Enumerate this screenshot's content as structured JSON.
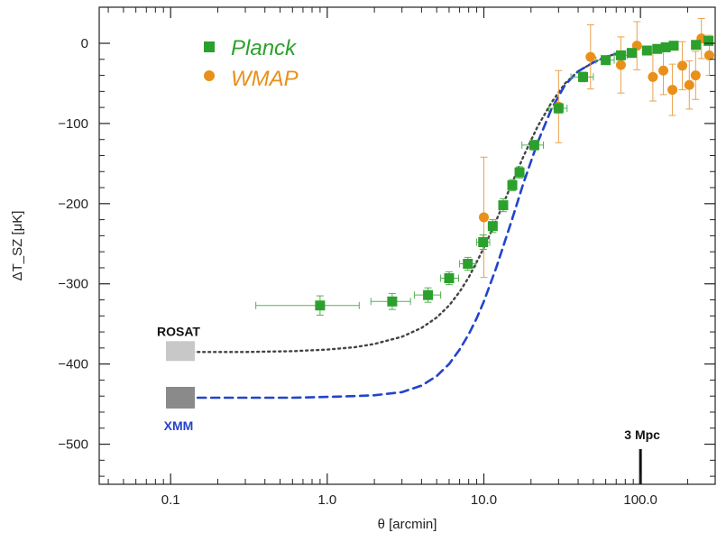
{
  "chart_data": {
    "type": "scatter",
    "xlabel": "θ [arcmin]",
    "ylabel": "ΔT_SZ [μK]",
    "xscale": "log",
    "xlim": [
      0.035,
      300
    ],
    "ylim": [
      -550,
      45
    ],
    "grid": false,
    "legend_position": "top-left",
    "x_ticks": [
      {
        "value": 0.1,
        "label": "0.1"
      },
      {
        "value": 1.0,
        "label": "1.0"
      },
      {
        "value": 10.0,
        "label": "10.0"
      },
      {
        "value": 100.0,
        "label": "100.0"
      }
    ],
    "y_ticks": [
      0,
      -100,
      -200,
      -300,
      -400,
      -500
    ],
    "series": [
      {
        "name": "Planck",
        "kind": "points",
        "marker": "square",
        "color": "#2ca02c",
        "points": [
          {
            "x": 0.9,
            "y": -327,
            "xerr": [
              0.35,
              1.6
            ],
            "yerr": 12
          },
          {
            "x": 2.6,
            "y": -322,
            "xerr": [
              1.9,
              3.4
            ],
            "yerr": 10
          },
          {
            "x": 4.4,
            "y": -314,
            "xerr": [
              3.6,
              5.3
            ],
            "yerr": 9
          },
          {
            "x": 6.0,
            "y": -293,
            "xerr": [
              5.3,
              6.9
            ],
            "yerr": 8
          },
          {
            "x": 7.9,
            "y": -275,
            "xerr": [
              7.0,
              8.9
            ],
            "yerr": 8
          },
          {
            "x": 9.9,
            "y": -248,
            "xerr": [
              9.0,
              10.9
            ],
            "yerr": 9
          },
          {
            "x": 11.4,
            "y": -228,
            "xerr": [
              10.8,
              12.1
            ],
            "yerr": 8
          },
          {
            "x": 13.3,
            "y": -202,
            "xerr": [
              12.5,
              14.2
            ],
            "yerr": 8
          },
          {
            "x": 15.2,
            "y": -177,
            "xerr": [
              14.3,
              16.1
            ],
            "yerr": 7
          },
          {
            "x": 16.9,
            "y": -161,
            "xerr": [
              16.0,
              17.8
            ],
            "yerr": 7
          },
          {
            "x": 21.0,
            "y": -127,
            "xerr": [
              17.5,
              24.0
            ],
            "yerr": 6
          },
          {
            "x": 30.0,
            "y": -81,
            "xerr": [
              26.0,
              34.0
            ],
            "yerr": 6
          },
          {
            "x": 43.0,
            "y": -42,
            "xerr": [
              36.0,
              50.0
            ],
            "yerr": 6
          },
          {
            "x": 60.0,
            "y": -21,
            "xerr": [
              52.0,
              68.0
            ],
            "yerr": 5
          },
          {
            "x": 75.0,
            "y": -15,
            "xerr": [
              68.0,
              82.0
            ],
            "yerr": 5
          },
          {
            "x": 88.0,
            "y": -12,
            "xerr": [
              82.0,
              94.0
            ],
            "yerr": 5
          },
          {
            "x": 110.0,
            "y": -9,
            "xerr": [
              103.0,
              117.0
            ],
            "yerr": 5
          },
          {
            "x": 128.0,
            "y": -7,
            "xerr": [
              120.0,
              136.0
            ],
            "yerr": 5
          },
          {
            "x": 145.0,
            "y": -5,
            "xerr": [
              137.0,
              153.0
            ],
            "yerr": 5
          },
          {
            "x": 163.0,
            "y": -3,
            "xerr": [
              155.0,
              171.0
            ],
            "yerr": 5
          },
          {
            "x": 226.0,
            "y": -2,
            "xerr": [
              215.0,
              238.0
            ],
            "yerr": 5
          },
          {
            "x": 272.0,
            "y": 3,
            "xerr": [
              262.0,
              282.0
            ],
            "yerr": 5
          }
        ]
      },
      {
        "name": "WMAP",
        "kind": "points",
        "marker": "circle",
        "color": "#e8901a",
        "points": [
          {
            "x": 10.0,
            "y": -217,
            "yerr": 75
          },
          {
            "x": 30.0,
            "y": -79,
            "yerr": 45
          },
          {
            "x": 48.0,
            "y": -17,
            "yerr": 40
          },
          {
            "x": 75.0,
            "y": -27,
            "yerr": 35
          },
          {
            "x": 95.0,
            "y": -3,
            "yerr": 30
          },
          {
            "x": 120.0,
            "y": -42,
            "yerr": 30
          },
          {
            "x": 140.0,
            "y": -34,
            "yerr": 30
          },
          {
            "x": 160.0,
            "y": -58,
            "yerr": 32
          },
          {
            "x": 185.0,
            "y": -28,
            "yerr": 30
          },
          {
            "x": 205.0,
            "y": -52,
            "yerr": 30
          },
          {
            "x": 225.0,
            "y": -40,
            "yerr": 30
          },
          {
            "x": 245.0,
            "y": 6,
            "yerr": 25
          },
          {
            "x": 275.0,
            "y": -15,
            "yerr": 25
          }
        ]
      },
      {
        "name": "ROSAT",
        "kind": "line",
        "style": "dotted",
        "color": "#444444",
        "points": [
          {
            "x": 0.1,
            "y": -385
          },
          {
            "x": 0.3,
            "y": -385
          },
          {
            "x": 0.6,
            "y": -384
          },
          {
            "x": 1.0,
            "y": -382
          },
          {
            "x": 1.5,
            "y": -379
          },
          {
            "x": 2.0,
            "y": -375
          },
          {
            "x": 3.0,
            "y": -366
          },
          {
            "x": 4.0,
            "y": -355
          },
          {
            "x": 5.0,
            "y": -342
          },
          {
            "x": 6.0,
            "y": -327
          },
          {
            "x": 7.0,
            "y": -310
          },
          {
            "x": 8.0,
            "y": -292
          },
          {
            "x": 9.0,
            "y": -273
          },
          {
            "x": 10.0,
            "y": -255
          },
          {
            "x": 12.0,
            "y": -221
          },
          {
            "x": 15.0,
            "y": -176
          },
          {
            "x": 18.0,
            "y": -140
          },
          {
            "x": 22.0,
            "y": -104
          },
          {
            "x": 27.0,
            "y": -74
          },
          {
            "x": 33.0,
            "y": -50
          },
          {
            "x": 40.0,
            "y": -35
          },
          {
            "x": 50.0,
            "y": -24
          },
          {
            "x": 60.0,
            "y": -17
          },
          {
            "x": 70.0,
            "y": -13
          }
        ]
      },
      {
        "name": "XMM",
        "kind": "line",
        "style": "dashed",
        "color": "#2244cc",
        "points": [
          {
            "x": 0.1,
            "y": -442
          },
          {
            "x": 0.3,
            "y": -442
          },
          {
            "x": 0.6,
            "y": -442
          },
          {
            "x": 1.0,
            "y": -441
          },
          {
            "x": 1.5,
            "y": -440
          },
          {
            "x": 2.0,
            "y": -439
          },
          {
            "x": 3.0,
            "y": -435
          },
          {
            "x": 4.0,
            "y": -427
          },
          {
            "x": 5.0,
            "y": -415
          },
          {
            "x": 6.0,
            "y": -400
          },
          {
            "x": 7.0,
            "y": -382
          },
          {
            "x": 8.0,
            "y": -363
          },
          {
            "x": 9.0,
            "y": -343
          },
          {
            "x": 10.0,
            "y": -322
          },
          {
            "x": 12.0,
            "y": -280
          },
          {
            "x": 15.0,
            "y": -222
          },
          {
            "x": 18.0,
            "y": -173
          },
          {
            "x": 22.0,
            "y": -124
          },
          {
            "x": 27.0,
            "y": -82
          },
          {
            "x": 33.0,
            "y": -52
          },
          {
            "x": 40.0,
            "y": -35
          },
          {
            "x": 50.0,
            "y": -24
          },
          {
            "x": 60.0,
            "y": -17
          },
          {
            "x": 70.0,
            "y": -13
          }
        ]
      }
    ],
    "legend": [
      {
        "label": "Planck",
        "marker": "square",
        "color": "#2ca02c"
      },
      {
        "label": "WMAP",
        "marker": "circle",
        "color": "#e8901a"
      }
    ],
    "annotations": [
      {
        "text": "ROSAT",
        "color": "#111111",
        "x": 0.1,
        "y": -385,
        "box_color": "#c8c8c8"
      },
      {
        "text": "XMM",
        "color": "#2244cc",
        "x": 0.1,
        "y": -442,
        "box_color": "#8a8a8a"
      },
      {
        "text": "3 Mpc",
        "color": "#111111",
        "x": 100.0,
        "y": -500
      }
    ]
  }
}
